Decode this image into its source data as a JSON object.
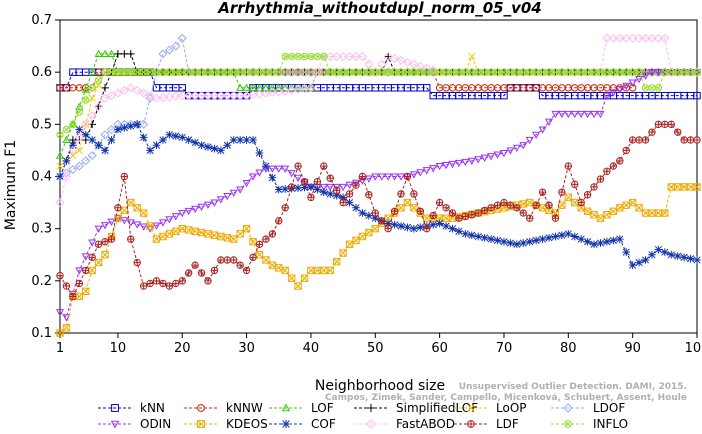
{
  "chart_data": {
    "type": "line",
    "title": "Arrhythmia_withoutdupl_norm_05_v04",
    "xlabel": "Neighborhood size",
    "ylabel": "Maximum F1",
    "xlim": [
      1,
      100
    ],
    "ylim": [
      0.1,
      0.7
    ],
    "xticks": [
      1,
      10,
      20,
      30,
      40,
      50,
      60,
      70,
      80,
      90,
      100
    ],
    "yticks": [
      0.1,
      0.2,
      0.3,
      0.4,
      0.5,
      0.6,
      0.7
    ],
    "grid": false,
    "legend_position": "bottom",
    "watermark": [
      "Campos, Zimek, Sander, Campello, Micenková, Schubert, Assent, Houle",
      "Unsupervised Outlier Detection. DAMI, 2015."
    ],
    "series": [
      {
        "name": "kNN",
        "color": "#0000CC",
        "marker": "square",
        "knots": [
          [
            1,
            0.57
          ],
          [
            2,
            0.57
          ],
          [
            3,
            0.6
          ],
          [
            15,
            0.6
          ],
          [
            16,
            0.57
          ],
          [
            20,
            0.57
          ],
          [
            21,
            0.555
          ],
          [
            30,
            0.555
          ],
          [
            31,
            0.57
          ],
          [
            45,
            0.57
          ],
          [
            55,
            0.57
          ],
          [
            58,
            0.57
          ],
          [
            59,
            0.555
          ],
          [
            70,
            0.555
          ],
          [
            71,
            0.57
          ],
          [
            75,
            0.57
          ],
          [
            76,
            0.555
          ],
          [
            100,
            0.555
          ]
        ]
      },
      {
        "name": "kNNW",
        "color": "#CC2200",
        "marker": "circle",
        "knots": [
          [
            1,
            0.57
          ],
          [
            6,
            0.57
          ],
          [
            7,
            0.6
          ],
          [
            59,
            0.6
          ],
          [
            60,
            0.57
          ],
          [
            90,
            0.57
          ],
          [
            91,
            0.6
          ],
          [
            100,
            0.6
          ]
        ]
      },
      {
        "name": "LOF",
        "color": "#33CC00",
        "marker": "triangle-up",
        "knots": [
          [
            1,
            0.44
          ],
          [
            3,
            0.5
          ],
          [
            6,
            0.6
          ],
          [
            7,
            0.635
          ],
          [
            9,
            0.635
          ],
          [
            10,
            0.6
          ],
          [
            28,
            0.6
          ],
          [
            29,
            0.57
          ],
          [
            40,
            0.57
          ],
          [
            41,
            0.6
          ],
          [
            100,
            0.6
          ]
        ]
      },
      {
        "name": "SimplifiedLOF",
        "color": "#000000",
        "marker": "plus",
        "knots": [
          [
            1,
            0.4
          ],
          [
            2,
            0.43
          ],
          [
            3,
            0.47
          ],
          [
            5,
            0.47
          ],
          [
            6,
            0.5
          ],
          [
            8,
            0.57
          ],
          [
            9,
            0.6
          ],
          [
            10,
            0.635
          ],
          [
            12,
            0.635
          ],
          [
            13,
            0.6
          ],
          [
            51,
            0.6
          ],
          [
            52,
            0.63
          ],
          [
            53,
            0.6
          ],
          [
            100,
            0.6
          ]
        ]
      },
      {
        "name": "LoOP",
        "color": "#EECC00",
        "marker": "x",
        "knots": [
          [
            1,
            0.42
          ],
          [
            4,
            0.45
          ],
          [
            6,
            0.55
          ],
          [
            8,
            0.6
          ],
          [
            64,
            0.6
          ],
          [
            65,
            0.63
          ],
          [
            66,
            0.6
          ],
          [
            100,
            0.6
          ]
        ]
      },
      {
        "name": "LDOF",
        "color": "#99AAEE",
        "marker": "diamond",
        "knots": [
          [
            1,
            0.4
          ],
          [
            4,
            0.42
          ],
          [
            6,
            0.44
          ],
          [
            8,
            0.48
          ],
          [
            10,
            0.5
          ],
          [
            14,
            0.5
          ],
          [
            16,
            0.6
          ],
          [
            17,
            0.635
          ],
          [
            19,
            0.65
          ],
          [
            20,
            0.665
          ],
          [
            21,
            0.6
          ],
          [
            100,
            0.6
          ]
        ]
      },
      {
        "name": "ODIN",
        "color": "#9933EE",
        "marker": "triangle-down",
        "knots": [
          [
            1,
            0.14
          ],
          [
            2,
            0.13
          ],
          [
            4,
            0.22
          ],
          [
            7,
            0.3
          ],
          [
            10,
            0.32
          ],
          [
            15,
            0.3
          ],
          [
            20,
            0.33
          ],
          [
            25,
            0.35
          ],
          [
            29,
            0.375
          ],
          [
            31,
            0.4
          ],
          [
            33,
            0.415
          ],
          [
            36,
            0.415
          ],
          [
            40,
            0.38
          ],
          [
            45,
            0.38
          ],
          [
            50,
            0.4
          ],
          [
            55,
            0.4
          ],
          [
            60,
            0.42
          ],
          [
            65,
            0.43
          ],
          [
            70,
            0.445
          ],
          [
            73,
            0.46
          ],
          [
            76,
            0.49
          ],
          [
            78,
            0.52
          ],
          [
            85,
            0.52
          ],
          [
            86,
            0.555
          ],
          [
            90,
            0.58
          ],
          [
            93,
            0.6
          ],
          [
            100,
            0.6
          ]
        ]
      },
      {
        "name": "KDEOS",
        "color": "#EEAA00",
        "marker": "square-x",
        "knots": [
          [
            1,
            0.1
          ],
          [
            2,
            0.11
          ],
          [
            3,
            0.17
          ],
          [
            4,
            0.17
          ],
          [
            5,
            0.18
          ],
          [
            6,
            0.22
          ],
          [
            8,
            0.25
          ],
          [
            10,
            0.32
          ],
          [
            12,
            0.35
          ],
          [
            14,
            0.33
          ],
          [
            16,
            0.28
          ],
          [
            20,
            0.3
          ],
          [
            24,
            0.29
          ],
          [
            28,
            0.28
          ],
          [
            30,
            0.3
          ],
          [
            32,
            0.25
          ],
          [
            34,
            0.23
          ],
          [
            36,
            0.22
          ],
          [
            38,
            0.19
          ],
          [
            40,
            0.22
          ],
          [
            43,
            0.22
          ],
          [
            46,
            0.27
          ],
          [
            50,
            0.3
          ],
          [
            55,
            0.35
          ],
          [
            58,
            0.32
          ],
          [
            62,
            0.32
          ],
          [
            66,
            0.33
          ],
          [
            70,
            0.34
          ],
          [
            74,
            0.35
          ],
          [
            78,
            0.33
          ],
          [
            80,
            0.36
          ],
          [
            82,
            0.34
          ],
          [
            85,
            0.32
          ],
          [
            88,
            0.34
          ],
          [
            90,
            0.35
          ],
          [
            92,
            0.33
          ],
          [
            95,
            0.33
          ],
          [
            96,
            0.38
          ],
          [
            100,
            0.38
          ]
        ]
      },
      {
        "name": "COF",
        "color": "#1133AA",
        "marker": "asterisk",
        "knots": [
          [
            1,
            0.4
          ],
          [
            2,
            0.43
          ],
          [
            4,
            0.49
          ],
          [
            6,
            0.47
          ],
          [
            8,
            0.45
          ],
          [
            10,
            0.49
          ],
          [
            13,
            0.5
          ],
          [
            15,
            0.45
          ],
          [
            18,
            0.48
          ],
          [
            20,
            0.475
          ],
          [
            23,
            0.46
          ],
          [
            26,
            0.45
          ],
          [
            28,
            0.47
          ],
          [
            31,
            0.47
          ],
          [
            33,
            0.42
          ],
          [
            35,
            0.375
          ],
          [
            40,
            0.38
          ],
          [
            42,
            0.37
          ],
          [
            45,
            0.36
          ],
          [
            48,
            0.33
          ],
          [
            52,
            0.31
          ],
          [
            56,
            0.3
          ],
          [
            60,
            0.31
          ],
          [
            64,
            0.29
          ],
          [
            68,
            0.28
          ],
          [
            72,
            0.27
          ],
          [
            76,
            0.28
          ],
          [
            80,
            0.29
          ],
          [
            84,
            0.27
          ],
          [
            88,
            0.28
          ],
          [
            90,
            0.23
          ],
          [
            92,
            0.24
          ],
          [
            94,
            0.26
          ],
          [
            96,
            0.25
          ],
          [
            100,
            0.24
          ]
        ]
      },
      {
        "name": "FastABOD",
        "color": "#FFBBEE",
        "marker": "diamond",
        "knots": [
          [
            1,
            0.35
          ],
          [
            3,
            0.45
          ],
          [
            5,
            0.5
          ],
          [
            8,
            0.55
          ],
          [
            12,
            0.57
          ],
          [
            16,
            0.55
          ],
          [
            20,
            0.555
          ],
          [
            30,
            0.555
          ],
          [
            40,
            0.57
          ],
          [
            42,
            0.63
          ],
          [
            48,
            0.63
          ],
          [
            50,
            0.6
          ],
          [
            52,
            0.63
          ],
          [
            60,
            0.6
          ],
          [
            85,
            0.6
          ],
          [
            86,
            0.665
          ],
          [
            95,
            0.665
          ],
          [
            96,
            0.6
          ],
          [
            100,
            0.6
          ]
        ]
      },
      {
        "name": "LDF",
        "color": "#AA2222",
        "marker": "circle-plus",
        "knots": [
          [
            1,
            0.21
          ],
          [
            3,
            0.17
          ],
          [
            5,
            0.22
          ],
          [
            7,
            0.27
          ],
          [
            9,
            0.28
          ],
          [
            11,
            0.4
          ],
          [
            12,
            0.28
          ],
          [
            14,
            0.19
          ],
          [
            16,
            0.2
          ],
          [
            18,
            0.19
          ],
          [
            20,
            0.2
          ],
          [
            22,
            0.23
          ],
          [
            24,
            0.2
          ],
          [
            26,
            0.24
          ],
          [
            28,
            0.24
          ],
          [
            30,
            0.22
          ],
          [
            32,
            0.27
          ],
          [
            34,
            0.29
          ],
          [
            36,
            0.34
          ],
          [
            38,
            0.42
          ],
          [
            40,
            0.36
          ],
          [
            42,
            0.42
          ],
          [
            45,
            0.35
          ],
          [
            48,
            0.4
          ],
          [
            50,
            0.33
          ],
          [
            52,
            0.3
          ],
          [
            55,
            0.4
          ],
          [
            58,
            0.3
          ],
          [
            60,
            0.35
          ],
          [
            63,
            0.32
          ],
          [
            66,
            0.33
          ],
          [
            70,
            0.35
          ],
          [
            72,
            0.34
          ],
          [
            74,
            0.32
          ],
          [
            76,
            0.37
          ],
          [
            78,
            0.32
          ],
          [
            80,
            0.42
          ],
          [
            82,
            0.35
          ],
          [
            84,
            0.38
          ],
          [
            86,
            0.41
          ],
          [
            88,
            0.43
          ],
          [
            90,
            0.47
          ],
          [
            92,
            0.47
          ],
          [
            94,
            0.5
          ],
          [
            96,
            0.5
          ],
          [
            98,
            0.47
          ],
          [
            100,
            0.47
          ]
        ]
      },
      {
        "name": "INFLO",
        "color": "#99DD33",
        "marker": "circle-x",
        "knots": [
          [
            1,
            0.48
          ],
          [
            3,
            0.5
          ],
          [
            6,
            0.57
          ],
          [
            8,
            0.6
          ],
          [
            35,
            0.6
          ],
          [
            36,
            0.63
          ],
          [
            42,
            0.63
          ],
          [
            43,
            0.6
          ],
          [
            91,
            0.6
          ],
          [
            92,
            0.57
          ],
          [
            94,
            0.57
          ],
          [
            95,
            0.6
          ],
          [
            100,
            0.6
          ]
        ]
      }
    ]
  }
}
